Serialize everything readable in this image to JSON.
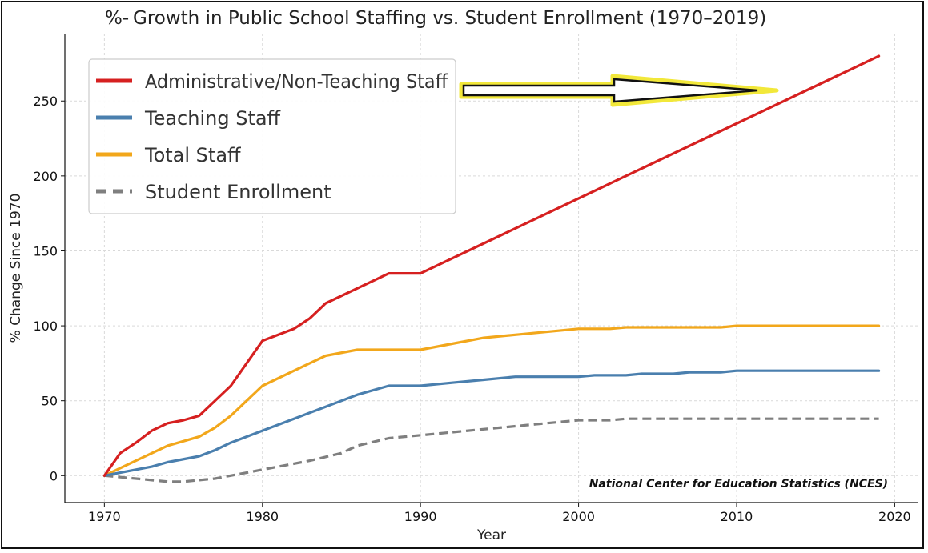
{
  "chart_data": {
    "type": "line",
    "title_prefix": "%-",
    "title": "Growth in Public School Staffing vs. Student Enrollment (1970–2019)",
    "xlabel": "Year",
    "ylabel": "% Change Since 1970",
    "xlim": [
      1967.5,
      2021.5
    ],
    "ylim": [
      -18,
      295
    ],
    "xticks": [
      1970,
      1980,
      1990,
      2000,
      2010,
      2020
    ],
    "yticks": [
      0,
      50,
      100,
      150,
      200,
      250
    ],
    "grid": true,
    "legend_position": "top-left",
    "source": "National Center for Education Statistics (NCES)",
    "colors": {
      "admin": "#d62020",
      "teaching": "#4a7fae",
      "total": "#f2a71b",
      "enrollment": "#7f7f7f",
      "arrow_glow": "#f2e83a"
    },
    "series": [
      {
        "name": "Administrative/Non-Teaching Staff",
        "color": "#d62020",
        "style": "solid",
        "points": [
          [
            1970,
            0
          ],
          [
            1971,
            15
          ],
          [
            1972,
            22
          ],
          [
            1973,
            30
          ],
          [
            1974,
            35
          ],
          [
            1975,
            37
          ],
          [
            1976,
            40
          ],
          [
            1978,
            60
          ],
          [
            1980,
            90
          ],
          [
            1982,
            98
          ],
          [
            1983,
            105
          ],
          [
            1984,
            115
          ],
          [
            1986,
            125
          ],
          [
            1988,
            135
          ],
          [
            1990,
            135
          ],
          [
            2019,
            280
          ]
        ]
      },
      {
        "name": "Teaching Staff",
        "color": "#4a7fae",
        "style": "solid",
        "points": [
          [
            1970,
            0
          ],
          [
            1973,
            6
          ],
          [
            1974,
            9
          ],
          [
            1976,
            13
          ],
          [
            1977,
            17
          ],
          [
            1978,
            22
          ],
          [
            1980,
            30
          ],
          [
            1982,
            38
          ],
          [
            1984,
            46
          ],
          [
            1986,
            54
          ],
          [
            1988,
            60
          ],
          [
            1990,
            60
          ],
          [
            1992,
            62
          ],
          [
            1994,
            64
          ],
          [
            1996,
            66
          ],
          [
            2000,
            66
          ],
          [
            2001,
            67
          ],
          [
            2003,
            67
          ],
          [
            2004,
            68
          ],
          [
            2006,
            68
          ],
          [
            2007,
            69
          ],
          [
            2009,
            69
          ],
          [
            2010,
            70
          ],
          [
            2019,
            70
          ]
        ]
      },
      {
        "name": "Total Staff",
        "color": "#f2a71b",
        "style": "solid",
        "points": [
          [
            1970,
            0
          ],
          [
            1972,
            10
          ],
          [
            1974,
            20
          ],
          [
            1976,
            26
          ],
          [
            1977,
            32
          ],
          [
            1978,
            40
          ],
          [
            1980,
            60
          ],
          [
            1982,
            70
          ],
          [
            1984,
            80
          ],
          [
            1986,
            84
          ],
          [
            1990,
            84
          ],
          [
            1992,
            88
          ],
          [
            1994,
            92
          ],
          [
            1996,
            94
          ],
          [
            2000,
            98
          ],
          [
            2002,
            98
          ],
          [
            2003,
            99
          ],
          [
            2009,
            99
          ],
          [
            2010,
            100
          ],
          [
            2019,
            100
          ]
        ]
      },
      {
        "name": "Student Enrollment",
        "color": "#7f7f7f",
        "style": "dashed",
        "points": [
          [
            1970,
            0
          ],
          [
            1972,
            -2
          ],
          [
            1974,
            -4
          ],
          [
            1975,
            -4
          ],
          [
            1977,
            -2
          ],
          [
            1980,
            4
          ],
          [
            1983,
            10
          ],
          [
            1985,
            15
          ],
          [
            1986,
            20
          ],
          [
            1988,
            25
          ],
          [
            1990,
            27
          ],
          [
            1995,
            32
          ],
          [
            2000,
            37
          ],
          [
            2002,
            37
          ],
          [
            2003,
            38
          ],
          [
            2019,
            38
          ]
        ]
      }
    ]
  }
}
